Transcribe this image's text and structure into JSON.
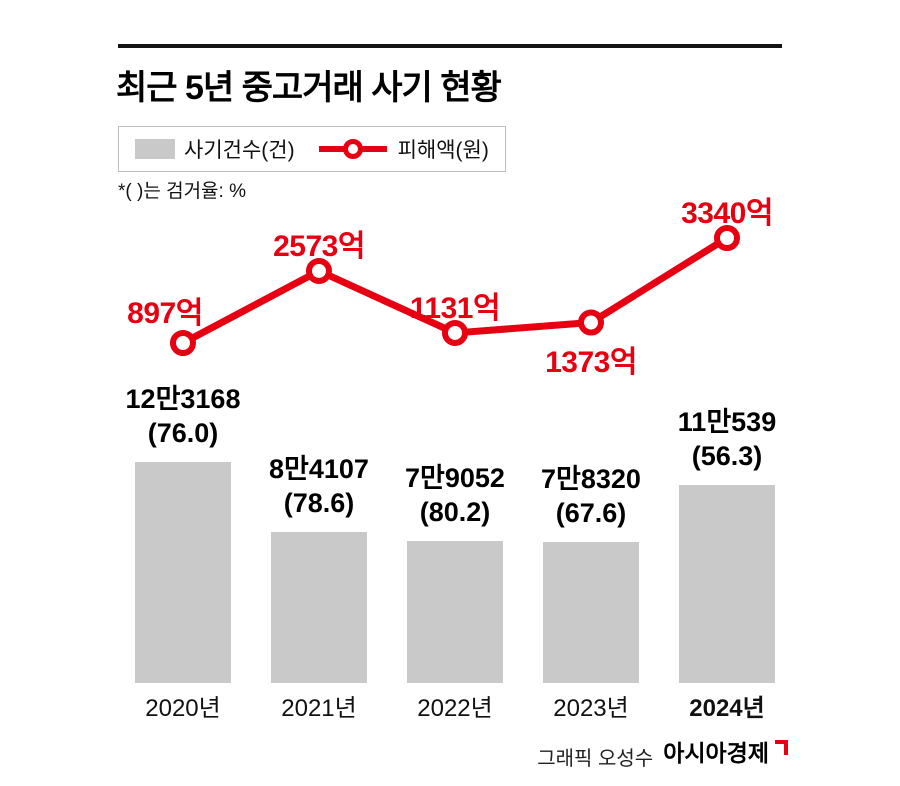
{
  "page": {
    "title": "최근 5년 중고거래 사기 현황",
    "note": "*( )는 검거율: %",
    "credit_prefix": "그래픽 오성수",
    "credit_brand": "아시아경제"
  },
  "legend": {
    "bar_label": "사기건수(건)",
    "line_label": "피해액(원)"
  },
  "colors": {
    "red": "#e60012",
    "bar_gray": "#c9c9c9",
    "black": "#141414"
  },
  "chart_data": {
    "type": "bar",
    "combo": "bar+line",
    "title": "최근 5년 중고거래 사기 현황",
    "categories": [
      "2020년",
      "2021년",
      "2022년",
      "2023년",
      "2024년"
    ],
    "category_emphasis": [
      false,
      false,
      false,
      false,
      true
    ],
    "series": [
      {
        "name": "사기건수(건)",
        "type": "bar",
        "values": [
          123168,
          84107,
          79052,
          78320,
          110539
        ],
        "value_labels": [
          "12만3168",
          "8만4107",
          "7만9052",
          "7만8320",
          "11만539"
        ],
        "sub_labels": [
          "(76.0)",
          "(78.6)",
          "(80.2)",
          "(67.6)",
          "(56.3)"
        ],
        "sub_label_meaning": "검거율 %"
      },
      {
        "name": "피해액(원)",
        "type": "line",
        "values": [
          897,
          2573,
          1131,
          1373,
          3340
        ],
        "value_labels": [
          "897억",
          "2573억",
          "1131억",
          "1373억",
          "3340억"
        ],
        "label_positions": [
          "above-left",
          "above",
          "above",
          "below",
          "above"
        ]
      }
    ],
    "legend_position": "top-left",
    "grid": false,
    "ylim_bar": [
      0,
      123168
    ],
    "ylim_line": [
      897,
      3340
    ]
  }
}
